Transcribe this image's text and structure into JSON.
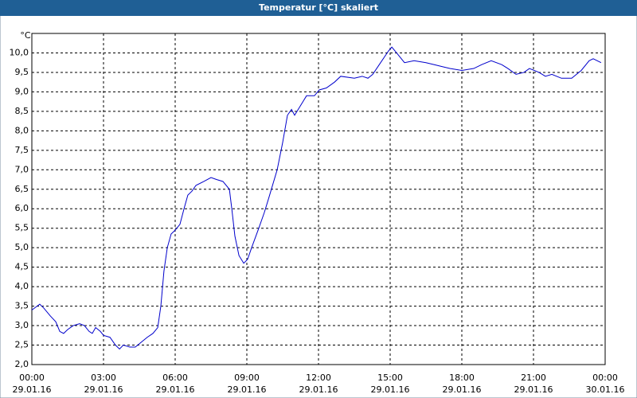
{
  "chart_data": {
    "type": "line",
    "title": "Temperatur [°C] skaliert",
    "y_label": "°C",
    "x": [
      0,
      0.33,
      0.5,
      0.77,
      1,
      1.17,
      1.33,
      1.5,
      1.73,
      2,
      2.2,
      2.4,
      2.53,
      2.67,
      2.87,
      3,
      3.27,
      3.5,
      3.67,
      3.83,
      4.1,
      4.33,
      4.53,
      4.83,
      5.07,
      5.27,
      5.4,
      5.53,
      5.67,
      5.83,
      6,
      6.2,
      6.37,
      6.53,
      6.7,
      6.87,
      7.2,
      7.5,
      7.73,
      8,
      8.27,
      8.37,
      8.5,
      8.67,
      8.87,
      9.03,
      9.2,
      9.5,
      9.73,
      9.93,
      10.27,
      10.5,
      10.7,
      10.87,
      11,
      11.2,
      11.5,
      11.83,
      12.03,
      12.33,
      12.67,
      12.93,
      13.5,
      13.83,
      14.07,
      14.27,
      14.6,
      14.93,
      15.07,
      15.27,
      15.6,
      16,
      16.5,
      16.83,
      17.17,
      17.5,
      18,
      18.5,
      18.83,
      19.23,
      19.67,
      19.93,
      20.27,
      20.6,
      20.83,
      21.23,
      21.5,
      21.77,
      22.17,
      22.6,
      23,
      23.33,
      23.5,
      23.83
    ],
    "series": [
      {
        "color": "#0000cc",
        "values": [
          3.4,
          3.55,
          3.45,
          3.25,
          3.1,
          2.85,
          2.8,
          2.9,
          3.0,
          3.05,
          3.0,
          2.85,
          2.8,
          2.95,
          2.85,
          2.75,
          2.7,
          2.5,
          2.4,
          2.5,
          2.45,
          2.45,
          2.55,
          2.7,
          2.8,
          2.95,
          3.5,
          4.4,
          5.0,
          5.35,
          5.45,
          5.6,
          6.0,
          6.35,
          6.45,
          6.6,
          6.7,
          6.8,
          6.75,
          6.7,
          6.5,
          6.0,
          5.3,
          4.8,
          4.6,
          4.7,
          5.0,
          5.5,
          5.9,
          6.3,
          7.0,
          7.7,
          8.4,
          8.55,
          8.4,
          8.6,
          8.9,
          8.9,
          9.05,
          9.1,
          9.25,
          9.4,
          9.35,
          9.4,
          9.35,
          9.45,
          9.75,
          10.05,
          10.15,
          10.0,
          9.75,
          9.8,
          9.75,
          9.7,
          9.65,
          9.6,
          9.55,
          9.6,
          9.7,
          9.8,
          9.7,
          9.6,
          9.45,
          9.5,
          9.6,
          9.5,
          9.4,
          9.45,
          9.35,
          9.35,
          9.55,
          9.8,
          9.85,
          9.75
        ]
      }
    ],
    "xlim": [
      0,
      24
    ],
    "xticks": [
      {
        "value": 0,
        "label": "00:00",
        "date": "29.01.16"
      },
      {
        "value": 3,
        "label": "03:00",
        "date": "29.01.16"
      },
      {
        "value": 6,
        "label": "06:00",
        "date": "29.01.16"
      },
      {
        "value": 9,
        "label": "09:00",
        "date": "29.01.16"
      },
      {
        "value": 12,
        "label": "12:00",
        "date": "29.01.16"
      },
      {
        "value": 15,
        "label": "15:00",
        "date": "29.01.16"
      },
      {
        "value": 18,
        "label": "18:00",
        "date": "29.01.16"
      },
      {
        "value": 21,
        "label": "21:00",
        "date": "29.01.16"
      },
      {
        "value": 24,
        "label": "00:00",
        "date": "30.01.16"
      }
    ],
    "ylim": [
      2.0,
      10.5
    ],
    "yticks": [
      {
        "value": 2.0,
        "label": "2,0"
      },
      {
        "value": 2.5,
        "label": "2,5"
      },
      {
        "value": 3.0,
        "label": "3,0"
      },
      {
        "value": 3.5,
        "label": "3,5"
      },
      {
        "value": 4.0,
        "label": "4,0"
      },
      {
        "value": 4.5,
        "label": "4,5"
      },
      {
        "value": 5.0,
        "label": "5,0"
      },
      {
        "value": 5.5,
        "label": "5,5"
      },
      {
        "value": 6.0,
        "label": "6,0"
      },
      {
        "value": 6.5,
        "label": "6,5"
      },
      {
        "value": 7.0,
        "label": "7,0"
      },
      {
        "value": 7.5,
        "label": "7,5"
      },
      {
        "value": 8.0,
        "label": "8,0"
      },
      {
        "value": 8.5,
        "label": "8,5"
      },
      {
        "value": 9.0,
        "label": "9,0"
      },
      {
        "value": 9.5,
        "label": "9,5"
      },
      {
        "value": 10.0,
        "label": "10,0"
      }
    ],
    "grid": true
  }
}
